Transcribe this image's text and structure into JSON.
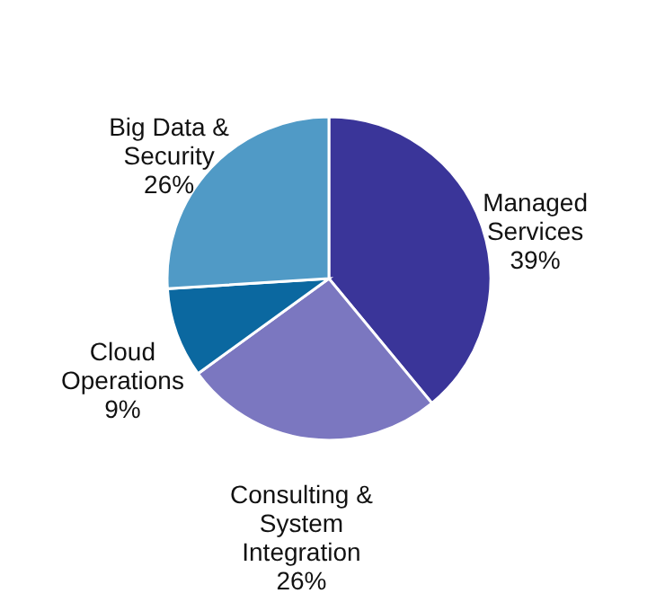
{
  "chart_data": {
    "type": "pie",
    "categories": [
      "Managed Services",
      "Consulting & System Integration",
      "Cloud Operations",
      "Big Data & Security"
    ],
    "values": [
      39,
      26,
      9,
      26
    ],
    "colors": [
      "#3a3599",
      "#7b77c0",
      "#0b68a0",
      "#509ac6"
    ],
    "value_labels": [
      "39%",
      "26%",
      "9%",
      "26%"
    ]
  }
}
